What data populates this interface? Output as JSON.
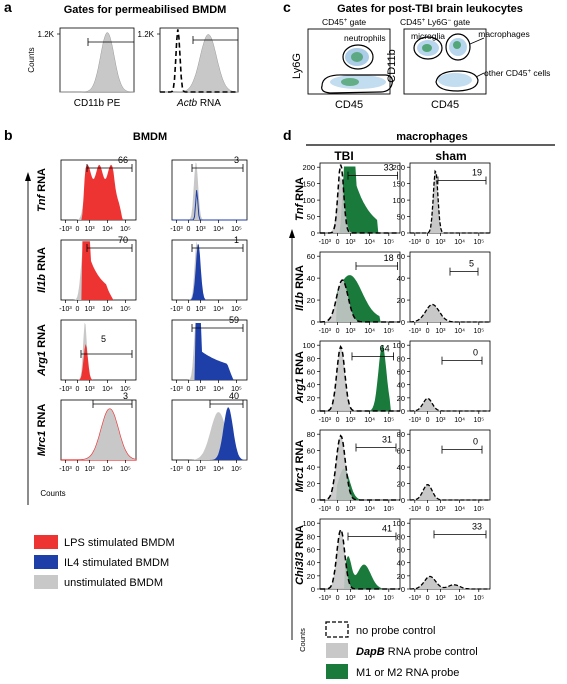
{
  "panel_letters": {
    "a": "a",
    "b": "b",
    "c": "c",
    "d": "d"
  },
  "panel_a": {
    "title": "Gates for permeabilised BMDM",
    "ytick": "1.2K",
    "ylabel": "Counts",
    "left_xlabel": "CD11b PE",
    "right_xlabel_gene": "Actb",
    "right_xlabel_suffix": " RNA"
  },
  "panel_c": {
    "title": "Gates for post-TBI brain leukocytes",
    "left_subtitle": "CD45+ gate",
    "right_subtitle": "CD45+ Ly6G- gate",
    "left_ylabel": "Ly6G",
    "right_ylabel": "CD11b",
    "xlabel": "CD45",
    "gates": {
      "neutrophils": "neutrophils",
      "microglia": "microglia",
      "macrophages": "macrophages",
      "other": "other CD45+ cells"
    }
  },
  "panel_b": {
    "title": "BMDM",
    "rows": [
      {
        "gene": "Tnf",
        "left": "66",
        "right": "3"
      },
      {
        "gene": "Il1b",
        "left": "70",
        "right": "1"
      },
      {
        "gene": "Arg1",
        "left": "5",
        "right": "59"
      },
      {
        "gene": "Mrc1",
        "left": "3",
        "right": "40"
      }
    ],
    "rna_suffix": " RNA",
    "counts": "Counts",
    "xticks": [
      "-10³",
      "0",
      "10³",
      "10⁴",
      "10⁵"
    ],
    "legend": [
      {
        "label": "LPS stimulated BMDM",
        "color": "#ee3333"
      },
      {
        "label": "IL4 stimulated BMDM",
        "color": "#1f3fa8"
      },
      {
        "label": "unstimulated BMDM",
        "color": "#c8c8c8"
      }
    ]
  },
  "panel_d": {
    "title": "macrophages",
    "col_tbi": "TBI",
    "col_sham": "sham",
    "rows": [
      {
        "gene": "Tnf",
        "tbi": "33",
        "sham": "19",
        "yticks": [
          "200",
          "150",
          "100",
          "50",
          "0"
        ]
      },
      {
        "gene": "Il1b",
        "tbi": "18",
        "sham": "5",
        "yticks": [
          "60",
          "40",
          "20",
          "0"
        ]
      },
      {
        "gene": "Arg1",
        "tbi": "64",
        "sham": "0",
        "yticks": [
          "100",
          "80",
          "60",
          "40",
          "20",
          "0"
        ]
      },
      {
        "gene": "Mrc1",
        "tbi": "31",
        "sham": "0",
        "yticks": [
          "80",
          "60",
          "40",
          "20",
          "0"
        ]
      },
      {
        "gene": "Chi3l3",
        "tbi": "41",
        "sham": "33",
        "yticks": [
          "100",
          "80",
          "60",
          "40",
          "20",
          "0"
        ]
      }
    ],
    "rna_suffix": " RNA",
    "counts": "Counts",
    "xticks": [
      "-10³",
      "0",
      "10³",
      "10⁴",
      "10⁵"
    ],
    "legend": [
      {
        "label": "no probe control",
        "color": "#ffffff",
        "gene": ""
      },
      {
        "label": " RNA probe control",
        "color": "#c8c8c8",
        "gene": "DapB"
      },
      {
        "label": "M1 or M2 RNA probe",
        "color": "#1a7a3c",
        "gene": ""
      }
    ]
  },
  "colors": {
    "red": "#ee3333",
    "blue": "#1f3fa8",
    "grey": "#c8c8c8",
    "green": "#1a7a3c"
  }
}
